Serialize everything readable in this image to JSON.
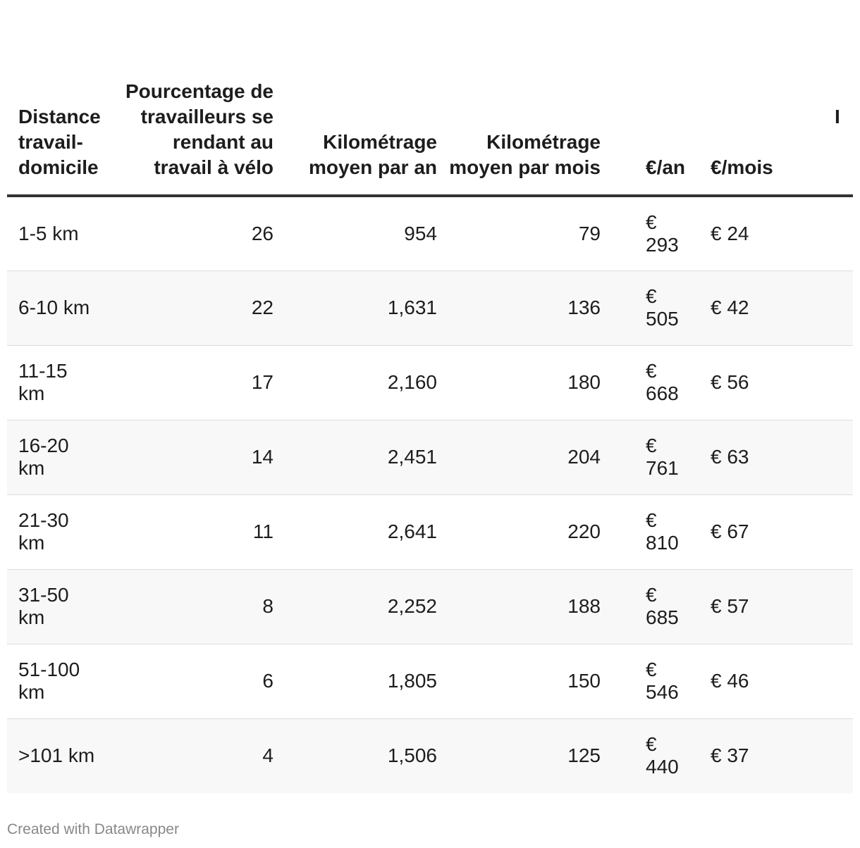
{
  "chart_data": {
    "type": "table",
    "columns": [
      "Distance travail-domicile",
      "Pourcentage de travailleurs se rendant au travail à vélo",
      "Kilométrage moyen par an",
      "Kilométrage moyen par mois",
      "€/an",
      "€/mois",
      "I"
    ],
    "rows": [
      {
        "distance": "1-5 km",
        "pct": "26",
        "km_an": "954",
        "km_mois": "79",
        "eur_an": "€ 293",
        "eur_mois": "€ 24"
      },
      {
        "distance": "6-10 km",
        "pct": "22",
        "km_an": "1,631",
        "km_mois": "136",
        "eur_an": "€ 505",
        "eur_mois": "€ 42"
      },
      {
        "distance": "11-15 km",
        "pct": "17",
        "km_an": "2,160",
        "km_mois": "180",
        "eur_an": "€ 668",
        "eur_mois": "€ 56"
      },
      {
        "distance": "16-20 km",
        "pct": "14",
        "km_an": "2,451",
        "km_mois": "204",
        "eur_an": "€ 761",
        "eur_mois": "€ 63"
      },
      {
        "distance": "21-30 km",
        "pct": "11",
        "km_an": "2,641",
        "km_mois": "220",
        "eur_an": "€ 810",
        "eur_mois": "€ 67"
      },
      {
        "distance": "31-50 km",
        "pct": "8",
        "km_an": "2,252",
        "km_mois": "188",
        "eur_an": "€ 685",
        "eur_mois": "€ 57"
      },
      {
        "distance": "51-100 km",
        "pct": "6",
        "km_an": "1,805",
        "km_mois": "150",
        "eur_an": "€ 546",
        "eur_mois": "€ 46"
      },
      {
        "distance": ">101 km",
        "pct": "4",
        "km_an": "1,506",
        "km_mois": "125",
        "eur_an": "€ 440",
        "eur_mois": "€ 37"
      }
    ]
  },
  "footer": {
    "credit": "Created with Datawrapper"
  }
}
